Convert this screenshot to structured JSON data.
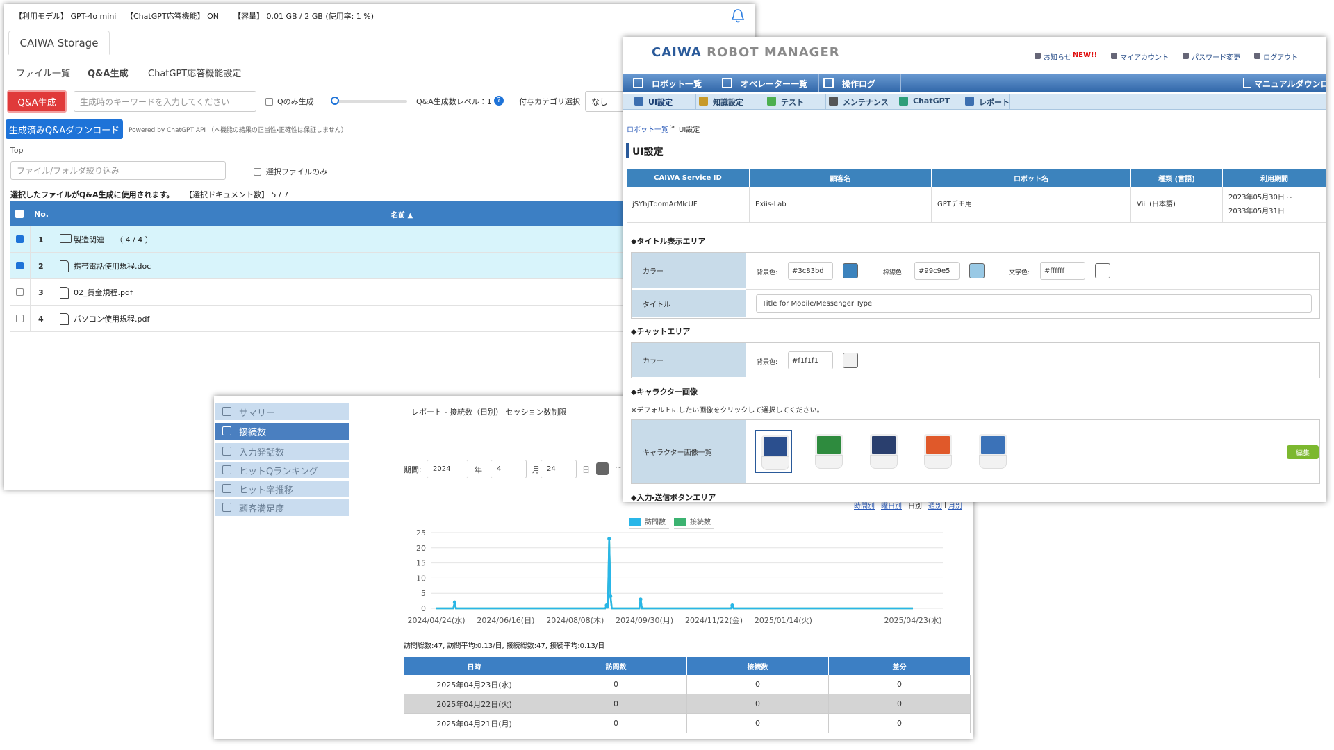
{
  "storage": {
    "status": [
      "【利用モデル】 GPT-4o mini",
      "【ChatGPT応答機能】 ON",
      "【容量】 0.01 GB / 2 GB (使用率: 1 %)"
    ],
    "tab": "CAIWA Storage",
    "nav": [
      "ファイル一覧",
      "Q&A生成",
      "ChatGPT応答機能設定"
    ],
    "active_nav": 1,
    "generate_button": "Q&A生成",
    "keyword_placeholder": "生成時のキーワードを入力してください",
    "q_only": "Qのみ生成",
    "level_label": "Q&A生成数レベル：1",
    "category_label": "付与カテゴリ選択",
    "category_value": "なし",
    "download_button": "生成済みQ&Aダウンロード",
    "powered": "Powered by ChatGPT API （本機能の結果の正当性・正確性は保証しません）",
    "breadcrumb": "Top",
    "filter_placeholder": "ファイル/フォルダ絞り込み",
    "selected_only": "選択ファイルのみ",
    "note": "選択したファイルがQ&A生成に使用されます。",
    "selected_count": "【選択ドキュメント数】 5 / 7",
    "headers": [
      "No.",
      "名前 ▲"
    ],
    "rows": [
      {
        "no": "1",
        "name": "製造関連",
        "count": "（ 4 / 4 ）",
        "checked": true,
        "icon": "folder"
      },
      {
        "no": "2",
        "name": "携帯電話使用規程.doc",
        "checked": true,
        "icon": "doc"
      },
      {
        "no": "3",
        "name": "02_賃金規程.pdf",
        "checked": false,
        "icon": "pdf"
      },
      {
        "no": "4",
        "name": "パソコン使用規程.pdf",
        "checked": false,
        "icon": "pdf"
      }
    ]
  },
  "robot_manager": {
    "brand": [
      "CAIWA",
      "ROBOT MANAGER"
    ],
    "top_links": [
      "お知らせ",
      "NEW!!",
      "マイアカウント",
      "パスワード変更",
      "ログアウト"
    ],
    "menu": [
      "ロボット一覧",
      "オペレーター一覧",
      "操作ログ"
    ],
    "manual": "マニュアルダウンロード",
    "submenu": [
      "UI設定",
      "知識設定",
      "テスト",
      "メンテナンス",
      "ChatGPT",
      "レポート"
    ],
    "breadcrumb": [
      "ロボット一覧",
      ">",
      "UI設定"
    ],
    "page_title": "UI設定",
    "info_headers": [
      "CAIWA Service ID",
      "顧客名",
      "ロボット名",
      "種類 (言語)",
      "利用期間"
    ],
    "info_row": [
      "jSYhjTdomArMlcUF",
      "Exiis-Lab",
      "GPTデモ用",
      "Viii (日本語)",
      [
        "2023年05月30日 ~",
        "2033年05月31日"
      ]
    ],
    "title_area": {
      "heading": "◆タイトル表示エリア",
      "color_label": "カラー",
      "colors": [
        {
          "label": "背景色:",
          "value": "#3c83bd"
        },
        {
          "label": "枠線色:",
          "value": "#99c9e5"
        },
        {
          "label": "文字色:",
          "value": "#ffffff"
        }
      ],
      "title_label": "タイトル",
      "title_value": "Title for Mobile/Messenger Type"
    },
    "chat_area": {
      "heading": "◆チャットエリア",
      "color_label": "カラー",
      "colors": [
        {
          "label": "背景色:",
          "value": "#f1f1f1"
        }
      ]
    },
    "character": {
      "heading": "◆キャラクター画像",
      "note": "※デフォルトにしたい画像をクリックして選択してください。",
      "label": "キャラクター画像一覧",
      "edit": "編集",
      "faces": [
        "#2b4f8e",
        "#2e8b3e",
        "#2a3f6e",
        "#e0592a",
        "#3b72b8"
      ]
    },
    "next_heading": "◆入力・送信ボタンエリア"
  },
  "report": {
    "sidebar": [
      "サマリー",
      "接続数",
      "入力発話数",
      "ヒットQランキング",
      "ヒット率推移",
      "顧客満足度"
    ],
    "active": 1,
    "title": "レポート - 接続数（日別） セッション数制限",
    "period": {
      "label": "期間:",
      "year": "2024",
      "year_unit": "年",
      "month": "4",
      "month_unit": "月",
      "day": "24",
      "day_unit": "日",
      "tilde": "~"
    },
    "links": [
      "時間別",
      "曜日別",
      "日別",
      "週別",
      "月別"
    ],
    "chart": {
      "type": "line",
      "x": [
        "2024/04/24",
        "2024/05/07",
        "2024/05/08",
        "2024/05/09",
        "2024/08/31",
        "2024/09/01",
        "2024/09/02",
        "2024/09/03",
        "2024/09/04",
        "2024/09/05",
        "2024/09/26",
        "2024/09/27",
        "2024/09/28",
        "2024/12/05",
        "2024/12/06",
        "2024/12/07",
        "2025/04/23"
      ],
      "series": [
        {
          "name": "訪問数",
          "color": "#29b6e8",
          "values": [
            0,
            0,
            2,
            0,
            0,
            1,
            0,
            23,
            4,
            0,
            0,
            3,
            0,
            0,
            1,
            0,
            0
          ]
        },
        {
          "name": "接続数",
          "color": "#3cb371",
          "values": [
            0,
            0,
            2,
            0,
            0,
            1,
            0,
            23,
            4,
            0,
            0,
            3,
            0,
            0,
            1,
            0,
            0
          ]
        }
      ],
      "xlim": [
        "2024/04/24",
        "2025/04/23"
      ],
      "xticks": [
        {
          "value": "2024/04/24",
          "label": "2024/04/24(水)"
        },
        {
          "value": "2024/06/16",
          "label": "2024/06/16(日)"
        },
        {
          "value": "2024/08/08",
          "label": "2024/08/08(木)"
        },
        {
          "value": "2024/09/30",
          "label": "2024/09/30(月)"
        },
        {
          "value": "2024/11/22",
          "label": "2024/11/22(金)"
        },
        {
          "value": "2025/01/14",
          "label": "2025/01/14(火)"
        },
        {
          "value": "2025/04/23",
          "label": "2025/04/23(水)"
        }
      ],
      "ylim": [
        0,
        25
      ],
      "yticks": [
        0,
        5,
        10,
        15,
        20,
        25
      ],
      "grid": true
    },
    "summary": "訪問総数:47, 訪問平均:0.13/日, 接続総数:47, 接続平均:0.13/日",
    "headers": [
      "日時",
      "訪問数",
      "接続数",
      "差分"
    ],
    "rows": [
      [
        "2025年04月23日(水)",
        "0",
        "0",
        "0"
      ],
      [
        "2025年04月22日(火)",
        "0",
        "0",
        "0"
      ],
      [
        "2025年04月21日(月)",
        "0",
        "0",
        "0"
      ]
    ]
  }
}
